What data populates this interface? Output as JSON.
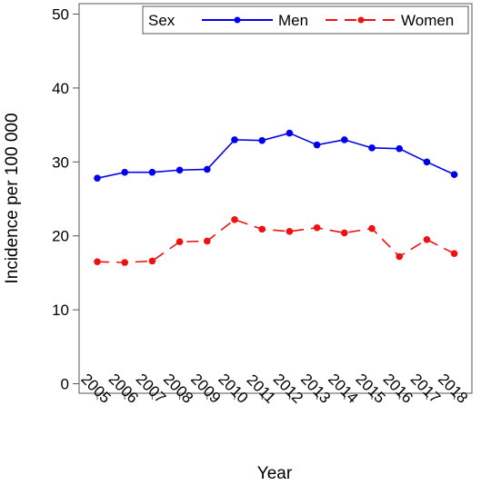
{
  "chart_data": {
    "type": "line",
    "title": "",
    "xlabel": "Year",
    "ylabel": "Incidence per 100 000",
    "x": [
      "2005",
      "2006",
      "2007",
      "2008",
      "2009",
      "2010",
      "2011",
      "2012",
      "2013",
      "2014",
      "2015",
      "2016",
      "2017",
      "2018"
    ],
    "ylim": [
      0,
      50
    ],
    "yticks": [
      0,
      10,
      20,
      30,
      40,
      50
    ],
    "grid": false,
    "legend": {
      "position": "top-right",
      "title": "Sex",
      "entries": [
        "Men",
        "Women"
      ]
    },
    "series": [
      {
        "name": "Men",
        "color": "#0000ee",
        "line_style": "solid",
        "values": [
          27.8,
          28.6,
          28.6,
          28.9,
          29.0,
          33.0,
          32.9,
          33.9,
          32.3,
          33.0,
          31.9,
          31.8,
          30.0,
          28.3
        ]
      },
      {
        "name": "Women",
        "color": "#ee1111",
        "line_style": "dashed",
        "values": [
          16.5,
          16.4,
          16.6,
          19.2,
          19.3,
          22.2,
          20.9,
          20.6,
          21.1,
          20.4,
          21.0,
          17.2,
          19.5,
          17.6
        ]
      }
    ]
  }
}
